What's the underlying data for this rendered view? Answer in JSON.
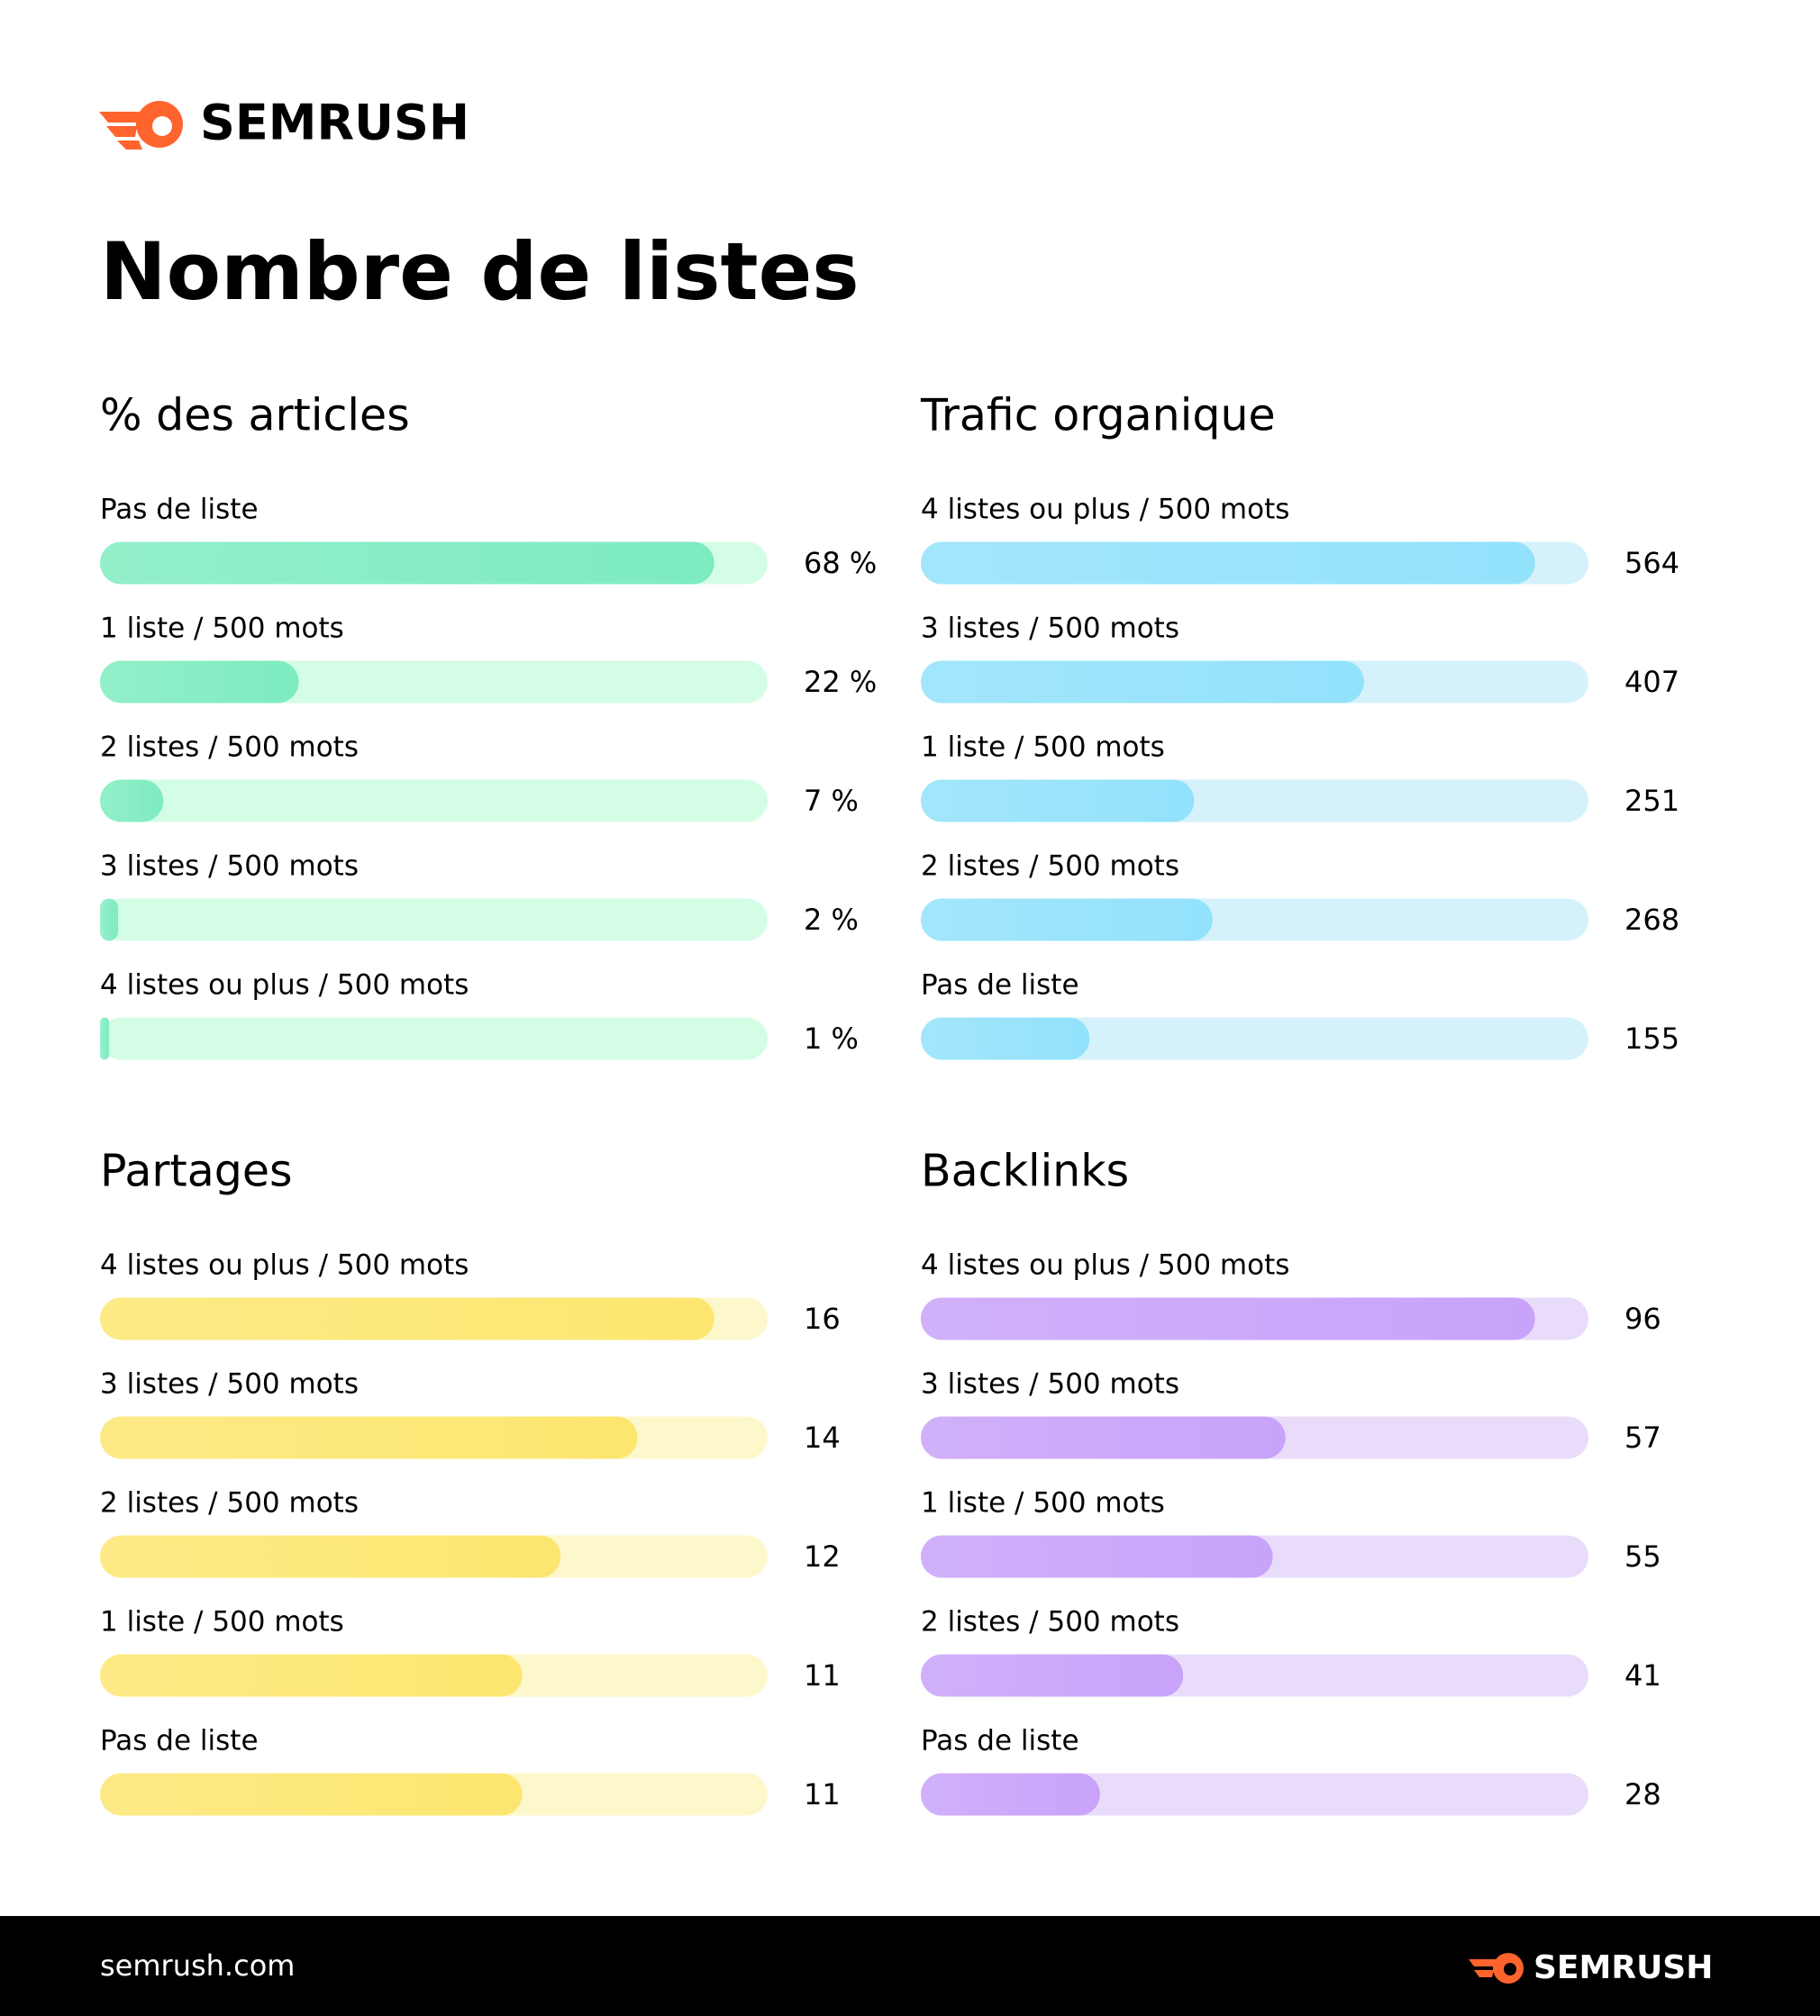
{
  "header": {
    "brand": "SEMRUSH",
    "title": "Nombre de listes"
  },
  "footer": {
    "url": "semrush.com",
    "brand": "SEMRUSH"
  },
  "chart_data": [
    {
      "type": "bar",
      "title": "% des articles",
      "categories": [
        "Pas de liste",
        "1 liste / 500 mots",
        "2 listes / 500 mots",
        "3 listes / 500 mots",
        "4 listes ou plus / 500 mots"
      ],
      "values": [
        68,
        22,
        7,
        2,
        1
      ],
      "value_labels": [
        "68 %",
        "22 %",
        "7 %",
        "2 %",
        "1 %"
      ],
      "color": "#7debc0",
      "track_color": "#d4fde6"
    },
    {
      "type": "bar",
      "title": "Trafic organique",
      "categories": [
        "4 listes ou plus / 500 mots",
        "3 listes / 500 mots",
        "1 liste / 500 mots",
        "2 listes / 500 mots",
        "Pas de liste"
      ],
      "values": [
        564,
        407,
        251,
        268,
        155
      ],
      "color": "#92e2fb",
      "track_color": "#d5f2fc"
    },
    {
      "type": "bar",
      "title": "Partages",
      "categories": [
        "4 listes ou plus / 500 mots",
        "3 listes / 500 mots",
        "2 listes / 500 mots",
        "1 liste / 500 mots",
        "Pas de liste"
      ],
      "values": [
        16,
        14,
        12,
        11,
        11
      ],
      "color": "#fde66f",
      "track_color": "#fdf7cc"
    },
    {
      "type": "bar",
      "title": "Backlinks",
      "categories": [
        "4 listes ou plus / 500 mots",
        "3 listes / 500 mots",
        "1 liste / 500 mots",
        "2 listes / 500 mots",
        "Pas de liste"
      ],
      "values": [
        96,
        57,
        55,
        41,
        28
      ],
      "color": "#c9a2fa",
      "track_color": "#e9dcfb"
    }
  ]
}
